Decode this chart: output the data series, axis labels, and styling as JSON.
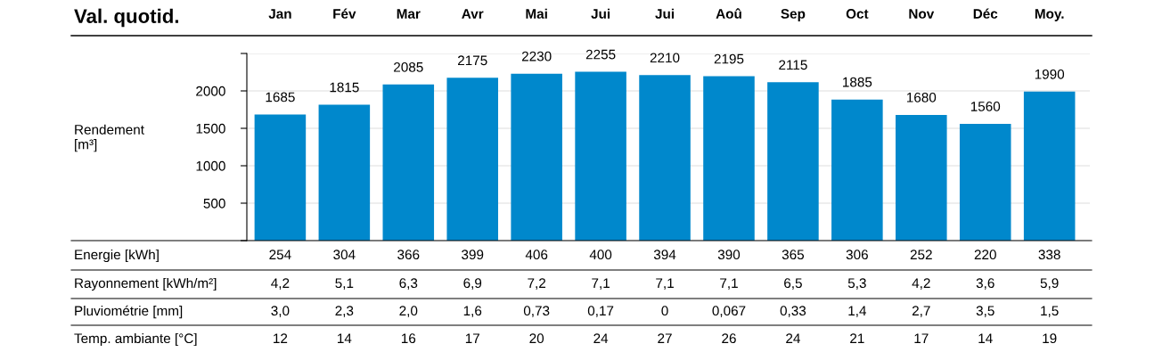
{
  "chart_data": {
    "type": "bar",
    "title": "Val. quotid.",
    "ylabel": "Rendement\n[m³]",
    "categories": [
      "Jan",
      "Fév",
      "Mar",
      "Avr",
      "Mai",
      "Jui",
      "Jui",
      "Aoû",
      "Sep",
      "Oct",
      "Nov",
      "Déc",
      "Moy."
    ],
    "values": [
      1685,
      1815,
      2085,
      2175,
      2230,
      2255,
      2210,
      2195,
      2115,
      1885,
      1680,
      1560,
      1990
    ],
    "color": "#0088cc",
    "data_labels": true,
    "grid": "y",
    "legend": false,
    "ylim": [
      0,
      2500
    ],
    "yticks": [
      {
        "value": 0,
        "label": null
      },
      500,
      1000,
      1500,
      2000,
      {
        "value": 2500,
        "label": null
      }
    ],
    "annotations": [
      "Energie [kWh]",
      "254",
      "304",
      "366",
      "399",
      "406",
      "400",
      "394",
      "390",
      "365",
      "306",
      "252",
      "220",
      "338",
      "Rayonnement [kWh/m²]",
      "4,2",
      "5,1",
      "6,3",
      "6,9",
      "7,2",
      "7,1",
      "7,1",
      "7,1",
      "6,5",
      "5,3",
      "4,2",
      "3,6",
      "5,9",
      "Pluviométrie [mm]",
      "3,0",
      "2,3",
      "2,0",
      "1,6",
      "0,73",
      "0,17",
      "0",
      "0,067",
      "0,33",
      "1,4",
      "2,7",
      "3,5",
      "1,5",
      "Temp. ambiante [°C]",
      "12",
      "14",
      "16",
      "17",
      "20",
      "24",
      "27",
      "26",
      "24",
      "21",
      "17",
      "14",
      "19"
    ]
  }
}
